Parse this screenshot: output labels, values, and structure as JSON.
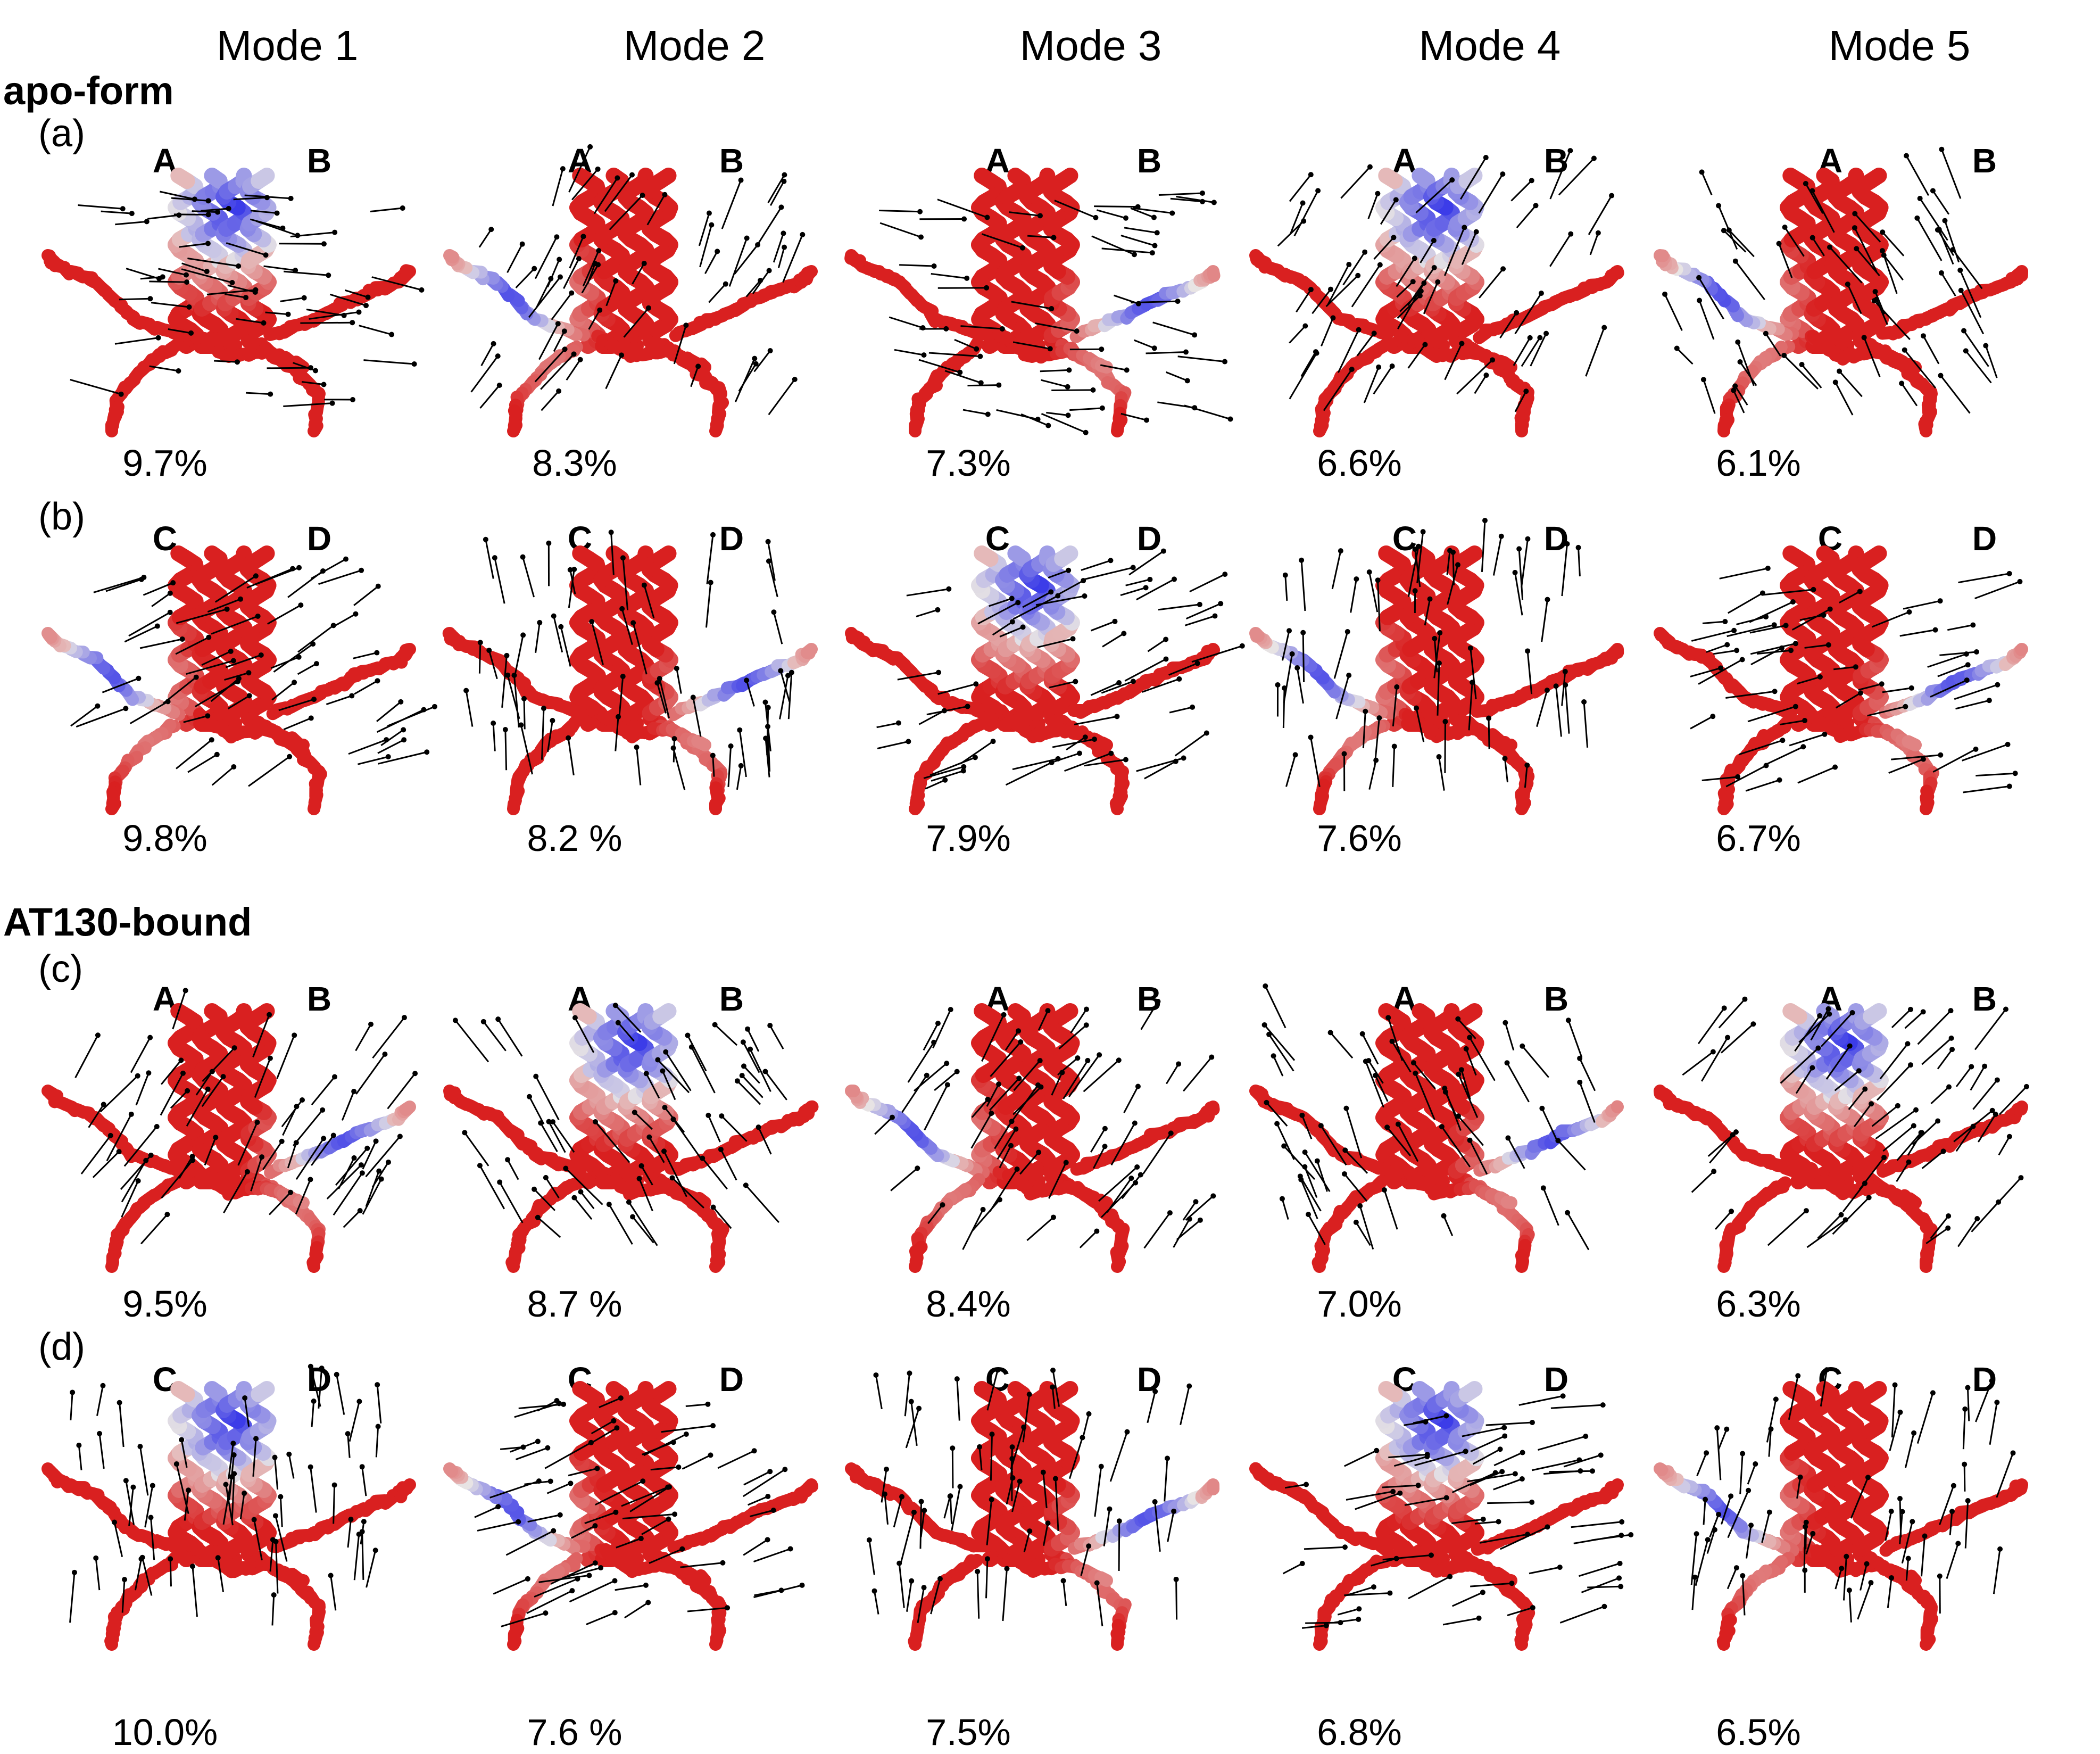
{
  "modes": [
    "Mode 1",
    "Mode 2",
    "Mode 3",
    "Mode 4",
    "Mode 5"
  ],
  "colors": {
    "red": "#d92020",
    "white": "#e8e4e4",
    "blue": "#2a2ae8",
    "arrow": "#000000"
  },
  "sections": [
    {
      "title": "apo-form",
      "rows": [
        {
          "label": "(a)",
          "chains": [
            "A",
            "B"
          ],
          "percents": [
            "9.7%",
            "8.3%",
            "7.3%",
            "6.6%",
            "6.1%"
          ],
          "blue_mode_index": [
            0,
            1,
            2,
            3,
            4
          ]
        },
        {
          "label": "(b)",
          "chains": [
            "C",
            "D"
          ],
          "percents": [
            "9.8%",
            "8.2 %",
            "7.9%",
            "7.6%",
            "6.7%"
          ]
        }
      ]
    },
    {
      "title": "AT130-bound",
      "rows": [
        {
          "label": "(c)",
          "chains": [
            "A",
            "B"
          ],
          "percents": [
            "9.5%",
            "8.7 %",
            "8.4%",
            "7.0%",
            "6.3%"
          ]
        },
        {
          "label": "(d)",
          "chains": [
            "C",
            "D"
          ],
          "percents": [
            "10.0%",
            "7.6 %",
            "7.5%",
            "6.8%",
            "6.5%"
          ]
        }
      ]
    }
  ]
}
